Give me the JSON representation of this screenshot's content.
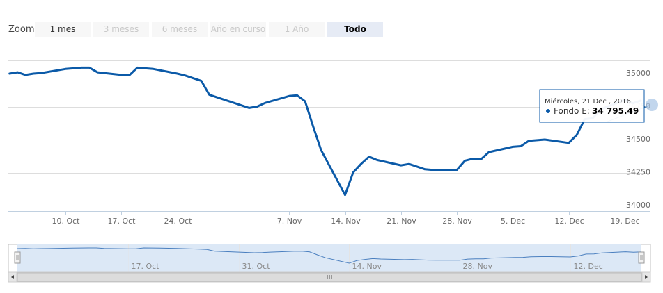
{
  "zoom": {
    "label": "Zoom",
    "buttons": [
      {
        "label": "1 mes",
        "state": "enabled"
      },
      {
        "label": "3 meses",
        "state": "disabled"
      },
      {
        "label": "6 meses",
        "state": "disabled"
      },
      {
        "label": "Año en curso",
        "state": "disabled"
      },
      {
        "label": "1 Año",
        "state": "disabled"
      },
      {
        "label": "Todo",
        "state": "active"
      }
    ]
  },
  "tooltip": {
    "date": "Miércoles, 21 Dec , 2016",
    "series_label": "Fondo E:",
    "value": "34 795.49"
  },
  "colors": {
    "series": "#0b5aa8",
    "navigator_fill": "#dce8f6",
    "grid": "#dddddd"
  },
  "chart_data": {
    "type": "line",
    "series": [
      {
        "name": "Fondo E",
        "x": [
          "2016-10-03",
          "2016-10-04",
          "2016-10-05",
          "2016-10-06",
          "2016-10-07",
          "2016-10-10",
          "2016-10-11",
          "2016-10-12",
          "2016-10-13",
          "2016-10-14",
          "2016-10-17",
          "2016-10-18",
          "2016-10-19",
          "2016-10-20",
          "2016-10-21",
          "2016-10-24",
          "2016-10-25",
          "2016-10-26",
          "2016-10-27",
          "2016-10-28",
          "2016-11-02",
          "2016-11-03",
          "2016-11-04",
          "2016-11-07",
          "2016-11-08",
          "2016-11-09",
          "2016-11-10",
          "2016-11-11",
          "2016-11-14",
          "2016-11-15",
          "2016-11-16",
          "2016-11-17",
          "2016-11-18",
          "2016-11-21",
          "2016-11-22",
          "2016-11-23",
          "2016-11-24",
          "2016-11-25",
          "2016-11-28",
          "2016-11-29",
          "2016-11-30",
          "2016-12-01",
          "2016-12-02",
          "2016-12-05",
          "2016-12-06",
          "2016-12-07",
          "2016-12-09",
          "2016-12-12",
          "2016-12-13",
          "2016-12-14",
          "2016-12-15",
          "2016-12-16",
          "2016-12-19",
          "2016-12-20",
          "2016-12-21"
        ],
        "y": [
          35000,
          35010,
          34990,
          35000,
          35005,
          35035,
          35040,
          35045,
          35045,
          35010,
          34990,
          34988,
          35045,
          35040,
          35035,
          35000,
          34985,
          34965,
          34945,
          34840,
          34740,
          34750,
          34778,
          34830,
          34835,
          34790,
          34600,
          34420,
          34080,
          34250,
          34315,
          34370,
          34345,
          34305,
          34315,
          34295,
          34275,
          34270,
          34270,
          34340,
          34355,
          34350,
          34405,
          34445,
          34450,
          34490,
          34500,
          34475,
          34535,
          34655,
          34662,
          34730,
          34800,
          34775,
          34795
        ]
      }
    ],
    "y_ticks": [
      "34000",
      "34250",
      "34500",
      "34750",
      "35000"
    ],
    "x_ticks": [
      "10. Oct",
      "17. Oct",
      "24. Oct",
      "7. Nov",
      "14. Nov",
      "21. Nov",
      "28. Nov",
      "5. Dec",
      "12. Dec",
      "19. Dec"
    ],
    "navigator_ticks": [
      "17. Oct",
      "31. Oct",
      "14. Nov",
      "28. Nov",
      "12. Dec"
    ],
    "ylim": [
      34000,
      35100
    ],
    "grid": true,
    "legend": "none"
  }
}
